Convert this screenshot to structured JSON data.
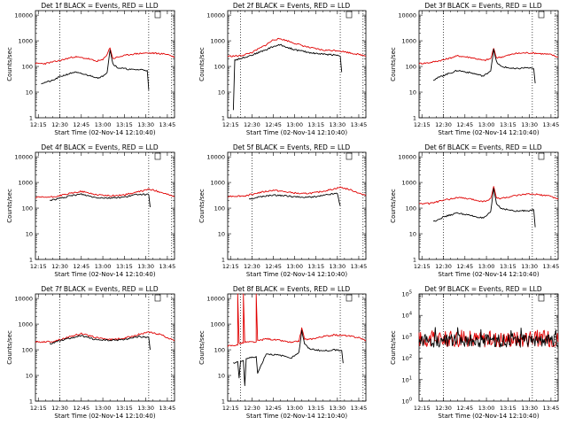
{
  "figure": {
    "xlabel": "Start Time (02-Nov-14 12:10:40)",
    "ylabel": "Counts/sec",
    "x_tick_labels": [
      "12:15",
      "12:30",
      "12:45",
      "13:00",
      "13:15",
      "13:30",
      "13:45"
    ]
  },
  "chart_data": [
    {
      "type": "line",
      "title": "Det 1f BLACK = Events, RED = LLD",
      "xlabel": "Start Time (02-Nov-14 12:10:40)",
      "ylabel": "Counts/sec",
      "xlim": [
        "12:13",
        "13:50"
      ],
      "ylim": [
        1,
        15000
      ],
      "yscale": "log",
      "yticks": [
        "1",
        "10",
        "100",
        "1000",
        "10000"
      ],
      "markers": [
        "12:30",
        "13:32",
        "13:48"
      ],
      "series": [
        {
          "name": "RED = LLD",
          "color": "#e00000",
          "t": [
            "12:13",
            "12:20",
            "12:30",
            "12:40",
            "12:50",
            "12:55",
            "13:00",
            "13:03",
            "13:05",
            "13:07",
            "13:10",
            "13:20",
            "13:28",
            "13:35",
            "13:45",
            "13:50"
          ],
          "values": [
            130,
            130,
            170,
            240,
            200,
            160,
            180,
            300,
            550,
            200,
            230,
            300,
            330,
            330,
            300,
            230
          ]
        },
        {
          "name": "BLACK = Events",
          "color": "#000000",
          "t": [
            "12:17",
            "12:25",
            "12:30",
            "12:40",
            "12:50",
            "12:58",
            "13:03",
            "13:05",
            "13:07",
            "13:10",
            "13:20",
            "13:28",
            "13:31",
            "13:32"
          ],
          "values": [
            22,
            28,
            40,
            60,
            45,
            35,
            60,
            450,
            130,
            90,
            75,
            75,
            70,
            12
          ]
        }
      ]
    },
    {
      "type": "line",
      "title": "Det 2f BLACK = Events, RED = LLD",
      "xlabel": "Start Time (02-Nov-14 12:10:40)",
      "ylabel": "Counts/sec",
      "xlim": [
        "12:13",
        "13:50"
      ],
      "ylim": [
        1,
        15000
      ],
      "yscale": "log",
      "yticks": [
        "1",
        "10",
        "100",
        "1000",
        "10000"
      ],
      "markers": [
        "12:22",
        "13:32",
        "13:48"
      ],
      "series": [
        {
          "name": "RED = LLD",
          "color": "#e00000",
          "t": [
            "12:13",
            "12:22",
            "12:30",
            "12:40",
            "12:45",
            "12:50",
            "12:55",
            "13:00",
            "13:10",
            "13:20",
            "13:30",
            "13:40",
            "13:50"
          ],
          "values": [
            250,
            260,
            350,
            700,
            1100,
            1200,
            1000,
            800,
            550,
            430,
            420,
            330,
            260
          ]
        },
        {
          "name": "BLACK = Events",
          "color": "#000000",
          "t": [
            "12:17",
            "12:18",
            "12:20",
            "12:30",
            "12:40",
            "12:45",
            "12:50",
            "12:55",
            "13:00",
            "13:10",
            "13:20",
            "13:30",
            "13:32",
            "13:33"
          ],
          "values": [
            2,
            180,
            190,
            280,
            450,
            600,
            700,
            550,
            450,
            350,
            300,
            280,
            250,
            60
          ]
        }
      ]
    },
    {
      "type": "line",
      "title": "Det 3f BLACK = Events, RED = LLD",
      "xlabel": "Start Time (02-Nov-14 12:10:40)",
      "ylabel": "Counts/sec",
      "xlim": [
        "12:13",
        "13:50"
      ],
      "ylim": [
        1,
        15000
      ],
      "yscale": "log",
      "yticks": [
        "1",
        "10",
        "100",
        "1000",
        "10000"
      ],
      "markers": [
        "12:30",
        "13:32",
        "13:48"
      ],
      "series": [
        {
          "name": "RED = LLD",
          "color": "#e00000",
          "t": [
            "12:13",
            "12:20",
            "12:30",
            "12:40",
            "12:50",
            "12:58",
            "13:03",
            "13:05",
            "13:07",
            "13:10",
            "13:20",
            "13:28",
            "13:35",
            "13:45",
            "13:50"
          ],
          "values": [
            130,
            140,
            180,
            260,
            220,
            170,
            200,
            500,
            220,
            230,
            320,
            340,
            330,
            290,
            230
          ]
        },
        {
          "name": "BLACK = Events",
          "color": "#000000",
          "t": [
            "12:23",
            "12:30",
            "12:40",
            "12:50",
            "12:58",
            "13:03",
            "13:05",
            "13:07",
            "13:10",
            "13:20",
            "13:28",
            "13:33",
            "13:34"
          ],
          "values": [
            30,
            45,
            70,
            55,
            42,
            70,
            450,
            150,
            100,
            80,
            90,
            80,
            22
          ]
        }
      ]
    },
    {
      "type": "line",
      "title": "Det 4f BLACK = Events, RED = LLD",
      "xlabel": "Start Time (02-Nov-14 12:10:40)",
      "ylabel": "Counts/sec",
      "xlim": [
        "12:13",
        "13:50"
      ],
      "ylim": [
        1,
        15000
      ],
      "yscale": "log",
      "yticks": [
        "1",
        "10",
        "100",
        "1000",
        "10000"
      ],
      "markers": [
        "12:30",
        "13:32",
        "13:48"
      ],
      "series": [
        {
          "name": "RED = LLD",
          "color": "#e00000",
          "t": [
            "12:13",
            "12:25",
            "12:35",
            "12:45",
            "12:55",
            "13:05",
            "13:15",
            "13:25",
            "13:32",
            "13:40",
            "13:50"
          ],
          "values": [
            260,
            270,
            350,
            450,
            340,
            300,
            330,
            430,
            550,
            430,
            280
          ]
        },
        {
          "name": "BLACK = Events",
          "color": "#000000",
          "t": [
            "12:23",
            "12:30",
            "12:40",
            "12:45",
            "12:55",
            "13:05",
            "13:15",
            "13:25",
            "13:32",
            "13:33"
          ],
          "values": [
            200,
            240,
            320,
            350,
            260,
            250,
            270,
            350,
            330,
            110
          ]
        }
      ]
    },
    {
      "type": "line",
      "title": "Det 5f BLACK = Events, RED = LLD",
      "xlabel": "Start Time (02-Nov-14 12:10:40)",
      "ylabel": "Counts/sec",
      "xlim": [
        "12:13",
        "13:50"
      ],
      "ylim": [
        1,
        15000
      ],
      "yscale": "log",
      "yticks": [
        "1",
        "10",
        "100",
        "1000",
        "10000"
      ],
      "markers": [
        "12:30",
        "13:32",
        "13:48"
      ],
      "series": [
        {
          "name": "RED = LLD",
          "color": "#e00000",
          "t": [
            "12:13",
            "12:25",
            "12:35",
            "12:45",
            "12:55",
            "13:05",
            "13:15",
            "13:25",
            "13:32",
            "13:40",
            "13:50"
          ],
          "values": [
            290,
            300,
            400,
            500,
            420,
            360,
            400,
            520,
            650,
            500,
            300
          ]
        },
        {
          "name": "BLACK = Events",
          "color": "#000000",
          "t": [
            "12:28",
            "12:35",
            "12:45",
            "12:55",
            "13:05",
            "13:15",
            "13:25",
            "13:30",
            "13:32"
          ],
          "values": [
            220,
            270,
            320,
            300,
            260,
            280,
            350,
            380,
            120
          ]
        }
      ]
    },
    {
      "type": "line",
      "title": "Det 6f BLACK = Events, RED = LLD",
      "xlabel": "Start Time (02-Nov-14 12:10:40)",
      "ylabel": "Counts/sec",
      "xlim": [
        "12:13",
        "13:50"
      ],
      "ylim": [
        1,
        15000
      ],
      "yscale": "log",
      "yticks": [
        "1",
        "10",
        "100",
        "1000",
        "10000"
      ],
      "markers": [
        "12:30",
        "13:32",
        "13:48"
      ],
      "series": [
        {
          "name": "RED = LLD",
          "color": "#e00000",
          "t": [
            "12:13",
            "12:20",
            "12:30",
            "12:40",
            "12:50",
            "12:58",
            "13:03",
            "13:05",
            "13:07",
            "13:10",
            "13:20",
            "13:28",
            "13:35",
            "13:45",
            "13:50"
          ],
          "values": [
            150,
            150,
            200,
            260,
            220,
            180,
            230,
            700,
            250,
            240,
            300,
            350,
            340,
            290,
            220
          ]
        },
        {
          "name": "BLACK = Events",
          "color": "#000000",
          "t": [
            "12:23",
            "12:30",
            "12:40",
            "12:50",
            "12:58",
            "13:03",
            "13:05",
            "13:07",
            "13:10",
            "13:20",
            "13:28",
            "13:33",
            "13:34"
          ],
          "values": [
            30,
            45,
            65,
            50,
            40,
            70,
            600,
            150,
            100,
            75,
            80,
            85,
            18
          ]
        }
      ]
    },
    {
      "type": "line",
      "title": "Det 7f BLACK = Events, RED = LLD",
      "xlabel": "Start Time (02-Nov-14 12:10:40)",
      "ylabel": "Counts/sec",
      "xlim": [
        "12:13",
        "13:50"
      ],
      "ylim": [
        1,
        15000
      ],
      "yscale": "log",
      "yticks": [
        "1",
        "10",
        "100",
        "1000",
        "10000"
      ],
      "markers": [
        "12:30",
        "13:32",
        "13:48"
      ],
      "series": [
        {
          "name": "RED = LLD",
          "color": "#e00000",
          "t": [
            "12:13",
            "12:25",
            "12:35",
            "12:45",
            "12:55",
            "13:05",
            "13:15",
            "13:25",
            "13:32",
            "13:40",
            "13:50"
          ],
          "values": [
            200,
            210,
            300,
            430,
            300,
            250,
            280,
            400,
            480,
            400,
            220
          ]
        },
        {
          "name": "BLACK = Events",
          "color": "#000000",
          "t": [
            "12:23",
            "12:30",
            "12:40",
            "12:45",
            "12:55",
            "13:05",
            "13:15",
            "13:25",
            "13:32",
            "13:33"
          ],
          "values": [
            170,
            230,
            310,
            350,
            250,
            230,
            250,
            330,
            300,
            100
          ]
        }
      ]
    },
    {
      "type": "line",
      "title": "Det 8f BLACK = Events, RED = LLD",
      "xlabel": "Start Time (02-Nov-14 12:10:40)",
      "ylabel": "Counts/sec",
      "xlim": [
        "12:13",
        "13:50"
      ],
      "ylim": [
        1,
        15000
      ],
      "yscale": "log",
      "yticks": [
        "1",
        "10",
        "100",
        "1000",
        "10000"
      ],
      "markers": [
        "12:22",
        "13:32",
        "13:48"
      ],
      "series": [
        {
          "name": "RED = LLD",
          "color": "#e00000",
          "t": [
            "12:13",
            "12:18",
            "12:20",
            "12:20",
            "12:21",
            "12:24",
            "12:24",
            "12:25",
            "12:33",
            "12:33",
            "12:34",
            "12:40",
            "12:50",
            "12:58",
            "13:03",
            "13:05",
            "13:07",
            "13:10",
            "13:20",
            "13:28",
            "13:35",
            "13:45",
            "13:50"
          ],
          "values": [
            140,
            150,
            150,
            15000,
            180,
            180,
            15000,
            200,
            200,
            15000,
            220,
            270,
            230,
            190,
            220,
            700,
            260,
            250,
            330,
            380,
            360,
            300,
            230
          ]
        },
        {
          "name": "BLACK = Events",
          "color": "#000000",
          "t": [
            "12:17",
            "12:20",
            "12:21",
            "12:22",
            "12:24",
            "12:25",
            "12:26",
            "12:30",
            "12:33",
            "12:34",
            "12:40",
            "12:50",
            "12:58",
            "13:03",
            "13:05",
            "13:07",
            "13:10",
            "13:20",
            "13:28",
            "13:33",
            "13:34"
          ],
          "values": [
            30,
            35,
            8,
            35,
            38,
            4,
            45,
            50,
            55,
            12,
            70,
            60,
            50,
            80,
            550,
            170,
            110,
            90,
            100,
            95,
            30
          ]
        }
      ]
    },
    {
      "type": "line",
      "title": "Det 9f BLACK = Events, RED = LLD",
      "xlabel": "Start Time (02-Nov-14 12:10:40)",
      "ylabel": "Counts/sec",
      "xlim": [
        "12:13",
        "13:50"
      ],
      "ylim": [
        1,
        100000
      ],
      "yscale": "log",
      "yticks": [
        "10^0",
        "10^1",
        "10^2",
        "10^3",
        "10^4",
        "10^5"
      ],
      "markers": [
        "12:30",
        "13:32",
        "13:48"
      ],
      "series": [
        {
          "name": "RED = LLD",
          "color": "#e00000",
          "t": [
            "12:13",
            "13:50"
          ],
          "values": [
            800,
            800
          ],
          "noise": 0.38,
          "seed": 17
        },
        {
          "name": "BLACK = Events",
          "color": "#000000",
          "t": [
            "12:13",
            "13:50"
          ],
          "values": [
            650,
            650
          ],
          "noise": 0.3,
          "seed": 29
        }
      ]
    }
  ]
}
